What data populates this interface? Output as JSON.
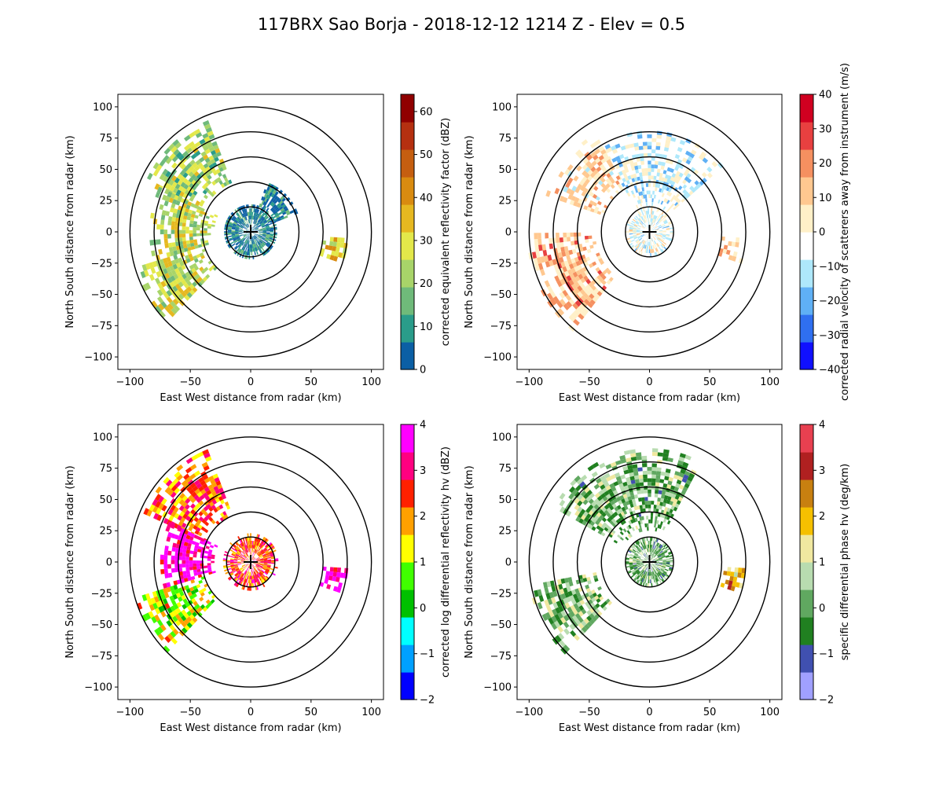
{
  "figure": {
    "title": "117BRX Sao Borja - 2018-12-12 1214 Z -  Elev = 0.5"
  },
  "chart_data": [
    {
      "type": "heatmap",
      "field": "reflectivity",
      "xlabel": "East West distance from radar (km)",
      "ylabel": "North South distance from radar (km)",
      "xlim": [
        -110,
        110
      ],
      "ylim": [
        -110,
        110
      ],
      "xticks": [
        -100,
        -50,
        0,
        50,
        100
      ],
      "yticks": [
        -100,
        -75,
        -50,
        -25,
        0,
        25,
        50,
        75,
        100
      ],
      "range_rings_km": [
        20,
        40,
        60,
        80,
        100
      ],
      "radar_location": [
        0,
        0
      ],
      "colorbar": {
        "label": "corrected equivalent reflectivity factor (dBZ)",
        "vmin": 0,
        "vmax": 64,
        "ticks": [
          0,
          10,
          20,
          30,
          40,
          50,
          60
        ],
        "colors": [
          "#0b5fa5",
          "#2a9c8a",
          "#6fba7a",
          "#a8d469",
          "#e3e84a",
          "#e6b820",
          "#d98b10",
          "#c55e10",
          "#b53010",
          "#900000"
        ]
      },
      "echo_regions": [
        {
          "name": "northwest sector",
          "az": [
            295,
            340
          ],
          "r": [
            42,
            95
          ],
          "level": 22
        },
        {
          "name": "west band",
          "az": [
            255,
            295
          ],
          "r": [
            30,
            82
          ],
          "level": 25
        },
        {
          "name": "southwest sector",
          "az": [
            225,
            255
          ],
          "r": [
            40,
            100
          ],
          "level": 27
        },
        {
          "name": "near radar",
          "az": [
            0,
            360
          ],
          "r": [
            1,
            22
          ],
          "level": 6
        },
        {
          "name": "northeast fringe",
          "az": [
            20,
            70
          ],
          "r": [
            18,
            40
          ],
          "level": 5
        },
        {
          "name": "east cell",
          "az": [
            95,
            110
          ],
          "r": [
            60,
            80
          ],
          "level": 32
        }
      ]
    },
    {
      "type": "heatmap",
      "field": "velocity",
      "xlabel": "East West distance from radar (km)",
      "ylabel": "North South distance from radar (km)",
      "xlim": [
        -110,
        110
      ],
      "ylim": [
        -110,
        110
      ],
      "xticks": [
        -100,
        -50,
        0,
        50,
        100
      ],
      "yticks": [
        -100,
        -75,
        -50,
        -25,
        0,
        25,
        50,
        75,
        100
      ],
      "range_rings_km": [
        20,
        40,
        60,
        80,
        100
      ],
      "radar_location": [
        0,
        0
      ],
      "colorbar": {
        "label": "corrected radial velocity of scatterers away from instrument (m/s)",
        "vmin": -40,
        "vmax": 40,
        "ticks": [
          -40,
          -30,
          -20,
          -10,
          0,
          10,
          20,
          30,
          40
        ],
        "colors": [
          "#1010ff",
          "#2f6ff0",
          "#5fb0f5",
          "#aee8fb",
          "#ffffff",
          "#fff0c8",
          "#ffc890",
          "#f59060",
          "#e84040",
          "#d00020"
        ]
      },
      "echo_regions": [
        {
          "name": "north inbound",
          "az": [
            330,
            50
          ],
          "r": [
            15,
            80
          ],
          "level": -7
        },
        {
          "name": "northwest outbound",
          "az": [
            290,
            330
          ],
          "r": [
            40,
            90
          ],
          "level": 5
        },
        {
          "name": "southwest outbound",
          "az": [
            220,
            270
          ],
          "r": [
            45,
            100
          ],
          "level": 12
        },
        {
          "name": "near radar",
          "az": [
            0,
            360
          ],
          "r": [
            2,
            20
          ],
          "level": -3
        },
        {
          "name": "east outbound",
          "az": [
            95,
            110
          ],
          "r": [
            60,
            80
          ],
          "level": 8
        }
      ]
    },
    {
      "type": "heatmap",
      "field": "differential_reflectivity",
      "xlabel": "East West distance from radar (km)",
      "ylabel": "North South distance from radar (km)",
      "xlim": [
        -110,
        110
      ],
      "ylim": [
        -110,
        110
      ],
      "xticks": [
        -100,
        -50,
        0,
        50,
        100
      ],
      "yticks": [
        -100,
        -75,
        -50,
        -25,
        0,
        25,
        50,
        75,
        100
      ],
      "range_rings_km": [
        20,
        40,
        60,
        80,
        100
      ],
      "radar_location": [
        0,
        0
      ],
      "colorbar": {
        "label": "corrected log differential reflectivity hv (dBZ)",
        "vmin": -2,
        "vmax": 4,
        "ticks": [
          -2,
          -1,
          0,
          1,
          2,
          3,
          4
        ],
        "colors": [
          "#0000ff",
          "#00a0ff",
          "#00ffff",
          "#00c000",
          "#40ff00",
          "#ffff00",
          "#ffa000",
          "#ff2000",
          "#ff0080",
          "#ff00ff"
        ]
      },
      "echo_regions": [
        {
          "name": "northwest sector",
          "az": [
            295,
            340
          ],
          "r": [
            40,
            95
          ],
          "level": 2.2
        },
        {
          "name": "west band",
          "az": [
            255,
            295
          ],
          "r": [
            30,
            75
          ],
          "level": 3.6
        },
        {
          "name": "southwest sector",
          "az": [
            225,
            255
          ],
          "r": [
            40,
            100
          ],
          "level": 1.2
        },
        {
          "name": "near radar",
          "az": [
            0,
            360
          ],
          "r": [
            2,
            22
          ],
          "level": 2.5
        },
        {
          "name": "east cell",
          "az": [
            95,
            110
          ],
          "r": [
            60,
            80
          ],
          "level": 3.8
        }
      ]
    },
    {
      "type": "heatmap",
      "field": "specific_differential_phase",
      "xlabel": "East West distance from radar (km)",
      "ylabel": "North South distance from radar (km)",
      "xlim": [
        -110,
        110
      ],
      "ylim": [
        -110,
        110
      ],
      "xticks": [
        -100,
        -50,
        0,
        50,
        100
      ],
      "yticks": [
        -100,
        -75,
        -50,
        -25,
        0,
        25,
        50,
        75,
        100
      ],
      "range_rings_km": [
        20,
        40,
        60,
        80,
        100
      ],
      "radar_location": [
        0,
        0
      ],
      "colorbar": {
        "label": "specific differential phase hv (deg/km)",
        "vmin": -2,
        "vmax": 4,
        "ticks": [
          -2,
          -1,
          0,
          1,
          2,
          3,
          4
        ],
        "colors": [
          "#a0a0ff",
          "#4050b0",
          "#208020",
          "#60a860",
          "#b8dcb0",
          "#f0e8a0",
          "#f5c000",
          "#c88010",
          "#b02020",
          "#e84050"
        ]
      },
      "echo_regions": [
        {
          "name": "north sector",
          "az": [
            300,
            30
          ],
          "r": [
            25,
            90
          ],
          "level": 0.2
        },
        {
          "name": "southwest sector",
          "az": [
            225,
            260
          ],
          "r": [
            45,
            100
          ],
          "level": 0.3
        },
        {
          "name": "near radar",
          "az": [
            0,
            360
          ],
          "r": [
            2,
            20
          ],
          "level": 0.1
        },
        {
          "name": "east cell",
          "az": [
            95,
            110
          ],
          "r": [
            62,
            78
          ],
          "level": 1.9
        }
      ]
    }
  ]
}
